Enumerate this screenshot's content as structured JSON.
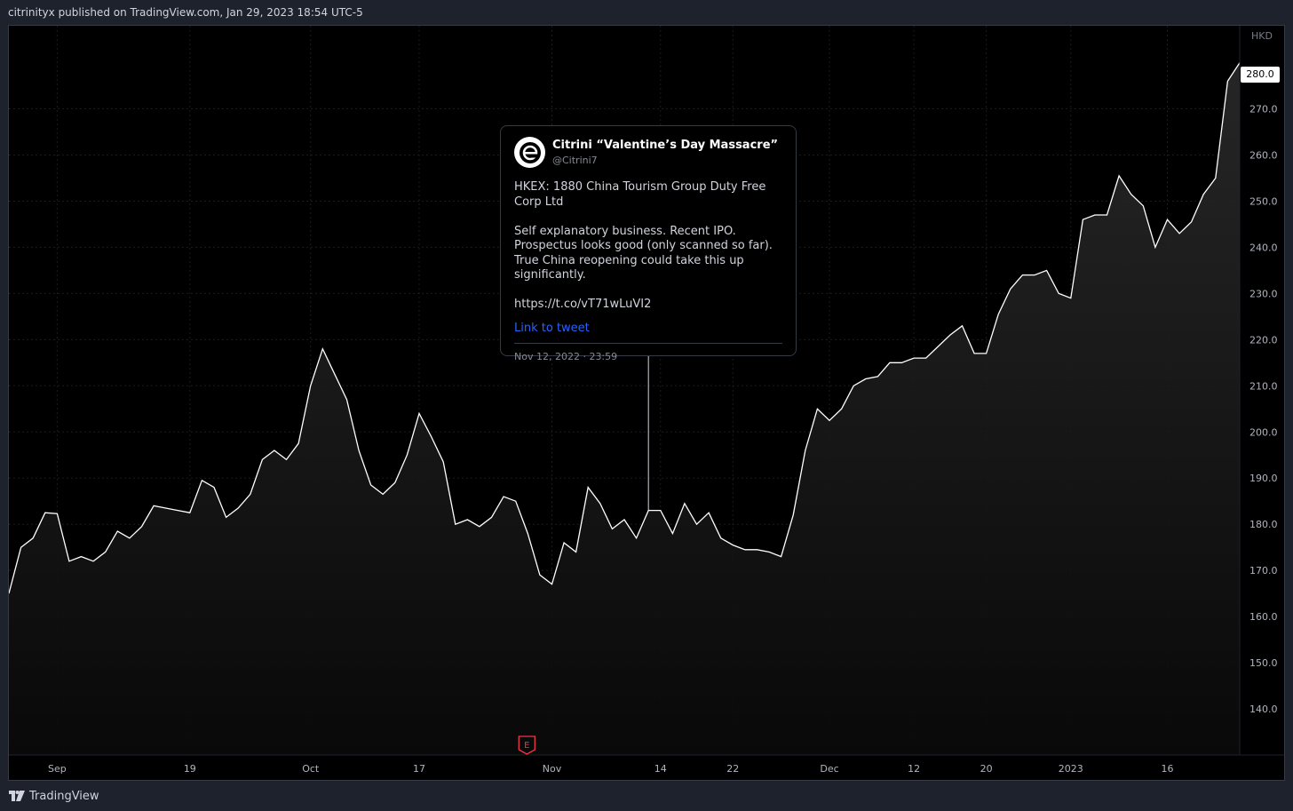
{
  "header": {
    "published_text": "citrinityx published on TradingView.com, Jan 29, 2023 18:54 UTC-5"
  },
  "footer": {
    "brand": "TradingView"
  },
  "colors": {
    "background": "#000000",
    "line": "#ffffff",
    "axis_text": "#787b86",
    "link": "#2962ff",
    "earnings": "#f23645"
  },
  "tweet": {
    "name": "Citrini “Valentine’s Day Massacre”",
    "handle": "@Citrini7",
    "body": "HKEX: 1880 China Tourism Group Duty Free Corp Ltd\n\nSelf explanatory business. Recent IPO. Prospectus looks good (only scanned so far). True China reopening could take this up significantly.\n\nhttps://t.co/vT71wLuVI2",
    "link_text": "Link to tweet",
    "date": "Nov 12, 2022 · 23:59"
  },
  "earnings_marker": {
    "label": "E"
  },
  "chart_data": {
    "type": "area",
    "currency": "HKD",
    "last_price": "280.0",
    "ylim": [
      130,
      288
    ],
    "y_ticks": [
      "140.0",
      "150.0",
      "160.0",
      "170.0",
      "180.0",
      "190.0",
      "200.0",
      "210.0",
      "220.0",
      "230.0",
      "240.0",
      "250.0",
      "260.0",
      "270.0"
    ],
    "x_ticks": [
      {
        "label": "Sep",
        "i": 4
      },
      {
        "label": "19",
        "i": 15
      },
      {
        "label": "Oct",
        "i": 25
      },
      {
        "label": "17",
        "i": 34
      },
      {
        "label": "Nov",
        "i": 45
      },
      {
        "label": "14",
        "i": 54
      },
      {
        "label": "22",
        "i": 60
      },
      {
        "label": "Dec",
        "i": 68
      },
      {
        "label": "12",
        "i": 75
      },
      {
        "label": "20",
        "i": 81
      },
      {
        "label": "2023",
        "i": 88
      },
      {
        "label": "16",
        "i": 96
      }
    ],
    "earnings_index": 43,
    "tweet_index": 53,
    "values": [
      165,
      175,
      177,
      182.5,
      182.3,
      172,
      173,
      172,
      174,
      178.5,
      177,
      179.5,
      184,
      183.5,
      183,
      182.5,
      189.5,
      188,
      181.5,
      183.5,
      186.5,
      194,
      196,
      194,
      197.5,
      210,
      218,
      212.5,
      207,
      196,
      188.5,
      186.5,
      189,
      195,
      204,
      199,
      193.5,
      180,
      181,
      179.5,
      181.5,
      186,
      185,
      178,
      169,
      167,
      176,
      174,
      188,
      184.5,
      179,
      181,
      177,
      183,
      183,
      178,
      184.5,
      180,
      182.5,
      177,
      175.5,
      174.5,
      174.5,
      174,
      173,
      182,
      196,
      205,
      202.5,
      205,
      210,
      211.5,
      212,
      215,
      215,
      216,
      216,
      218.5,
      221,
      223,
      217,
      217,
      225.5,
      231,
      234,
      234,
      235,
      230,
      229,
      246,
      247,
      247,
      255.5,
      251.5,
      249,
      240,
      246,
      243,
      245.5,
      251.5,
      255,
      276,
      280
    ]
  }
}
